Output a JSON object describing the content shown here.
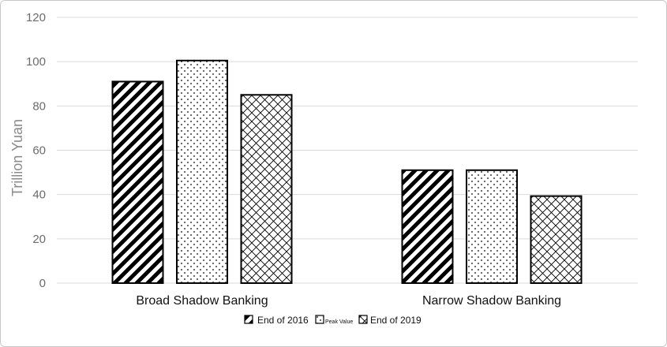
{
  "chart_data": {
    "type": "bar",
    "categories": [
      "Broad Shadow Banking",
      "Narrow Shadow Banking"
    ],
    "series": [
      {
        "name": "End of 2016",
        "values": [
          91,
          51
        ],
        "pattern": "diagonal-stripes"
      },
      {
        "name": "Peak Value",
        "values": [
          100.5,
          51
        ],
        "pattern": "dots"
      },
      {
        "name": "End of 2019",
        "values": [
          85,
          39.3
        ],
        "pattern": "crosshatch"
      }
    ],
    "ylabel": "Trillion Yuan",
    "ylim": [
      0,
      120
    ],
    "yticks": [
      "0",
      "20",
      "40",
      "60",
      "80",
      "100",
      "120"
    ],
    "grid": true,
    "legend_position": "bottom"
  }
}
